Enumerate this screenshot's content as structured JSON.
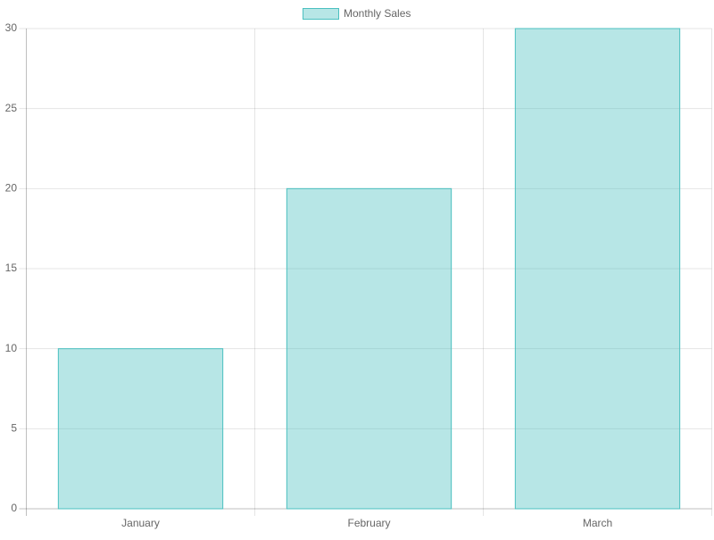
{
  "chart_data": {
    "type": "bar",
    "categories": [
      "January",
      "February",
      "March"
    ],
    "series": [
      {
        "name": "Monthly Sales",
        "color": "#4bc0c0",
        "values": [
          10,
          20,
          30
        ]
      }
    ],
    "ylim": [
      0,
      30
    ],
    "yticks": [
      0,
      5,
      10,
      15,
      20,
      25,
      30
    ],
    "grid": true,
    "legend": "top"
  }
}
